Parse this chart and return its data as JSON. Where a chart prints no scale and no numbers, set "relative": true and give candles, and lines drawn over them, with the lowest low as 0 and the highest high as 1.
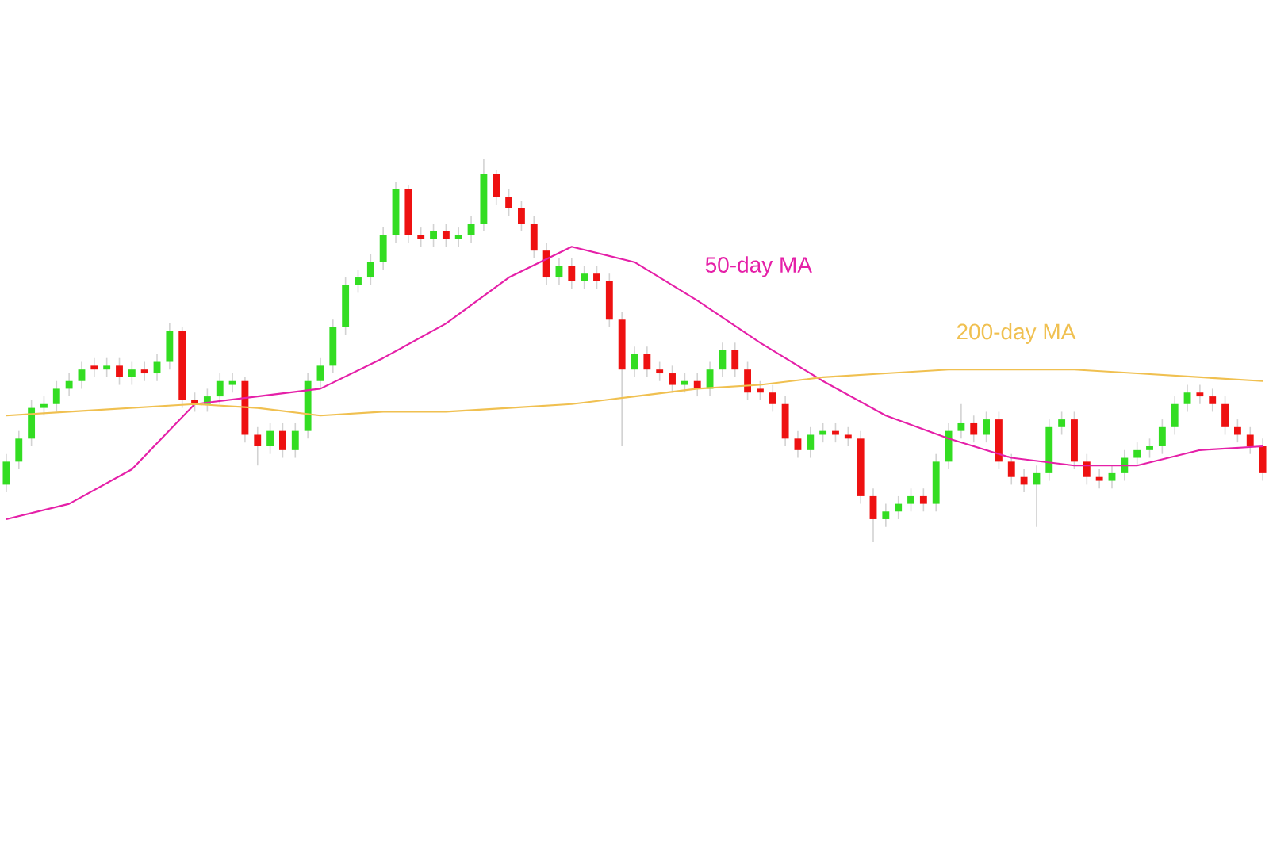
{
  "chart_data": {
    "type": "candlestick",
    "relative": true,
    "categories": [
      null,
      null,
      null,
      null,
      null,
      null,
      null,
      null,
      null,
      null,
      null,
      null,
      null,
      null,
      null,
      null,
      null,
      null,
      null,
      null,
      null,
      null,
      null,
      null,
      null,
      null,
      null,
      null,
      null,
      null,
      null,
      null,
      null,
      null,
      null,
      null,
      null,
      null,
      null,
      null,
      null,
      null,
      null,
      null,
      null,
      null,
      null,
      null,
      null,
      null,
      null,
      null,
      null,
      null,
      null,
      null,
      null,
      null,
      null,
      null,
      null,
      null,
      null,
      null,
      null,
      null,
      null,
      null,
      null,
      null,
      null,
      null,
      null,
      null,
      null,
      null,
      null,
      null,
      null,
      null,
      null,
      null,
      null,
      null,
      null,
      null,
      null,
      null,
      null,
      null,
      null,
      null,
      null,
      null,
      null,
      null,
      null,
      null,
      null,
      null,
      null
    ],
    "ohlc": [
      [
        0.15,
        0.23,
        0.13,
        0.21
      ],
      [
        0.21,
        0.29,
        0.19,
        0.27
      ],
      [
        0.27,
        0.37,
        0.25,
        0.35
      ],
      [
        0.35,
        0.38,
        0.33,
        0.36
      ],
      [
        0.36,
        0.42,
        0.34,
        0.4
      ],
      [
        0.4,
        0.44,
        0.38,
        0.42
      ],
      [
        0.42,
        0.47,
        0.4,
        0.45
      ],
      [
        0.46,
        0.48,
        0.43,
        0.45
      ],
      [
        0.45,
        0.48,
        0.43,
        0.46
      ],
      [
        0.46,
        0.48,
        0.41,
        0.43
      ],
      [
        0.43,
        0.47,
        0.41,
        0.45
      ],
      [
        0.45,
        0.47,
        0.42,
        0.44
      ],
      [
        0.44,
        0.49,
        0.42,
        0.47
      ],
      [
        0.47,
        0.57,
        0.45,
        0.55
      ],
      [
        0.55,
        0.56,
        0.35,
        0.37
      ],
      [
        0.37,
        0.39,
        0.34,
        0.36
      ],
      [
        0.36,
        0.4,
        0.34,
        0.38
      ],
      [
        0.38,
        0.44,
        0.36,
        0.42
      ],
      [
        0.41,
        0.44,
        0.39,
        0.42
      ],
      [
        0.42,
        0.43,
        0.26,
        0.28
      ],
      [
        0.28,
        0.3,
        0.2,
        0.25
      ],
      [
        0.25,
        0.31,
        0.23,
        0.29
      ],
      [
        0.29,
        0.31,
        0.22,
        0.24
      ],
      [
        0.24,
        0.31,
        0.22,
        0.29
      ],
      [
        0.29,
        0.44,
        0.27,
        0.42
      ],
      [
        0.42,
        0.48,
        0.4,
        0.46
      ],
      [
        0.46,
        0.58,
        0.44,
        0.56
      ],
      [
        0.56,
        0.69,
        0.54,
        0.67
      ],
      [
        0.67,
        0.71,
        0.65,
        0.69
      ],
      [
        0.69,
        0.75,
        0.67,
        0.73
      ],
      [
        0.73,
        0.82,
        0.71,
        0.8
      ],
      [
        0.8,
        0.94,
        0.78,
        0.92
      ],
      [
        0.92,
        0.93,
        0.78,
        0.8
      ],
      [
        0.8,
        0.82,
        0.77,
        0.79
      ],
      [
        0.79,
        0.83,
        0.77,
        0.81
      ],
      [
        0.81,
        0.83,
        0.77,
        0.79
      ],
      [
        0.79,
        0.82,
        0.77,
        0.8
      ],
      [
        0.8,
        0.85,
        0.78,
        0.83
      ],
      [
        0.83,
        1.0,
        0.81,
        0.96
      ],
      [
        0.96,
        0.97,
        0.88,
        0.9
      ],
      [
        0.9,
        0.92,
        0.85,
        0.87
      ],
      [
        0.87,
        0.89,
        0.81,
        0.83
      ],
      [
        0.83,
        0.85,
        0.74,
        0.76
      ],
      [
        0.76,
        0.78,
        0.67,
        0.69
      ],
      [
        0.69,
        0.74,
        0.67,
        0.72
      ],
      [
        0.72,
        0.74,
        0.66,
        0.68
      ],
      [
        0.68,
        0.72,
        0.66,
        0.7
      ],
      [
        0.7,
        0.72,
        0.66,
        0.68
      ],
      [
        0.68,
        0.7,
        0.56,
        0.58
      ],
      [
        0.58,
        0.6,
        0.25,
        0.45
      ],
      [
        0.45,
        0.51,
        0.43,
        0.49
      ],
      [
        0.49,
        0.51,
        0.43,
        0.45
      ],
      [
        0.45,
        0.47,
        0.42,
        0.44
      ],
      [
        0.44,
        0.46,
        0.39,
        0.41
      ],
      [
        0.41,
        0.44,
        0.39,
        0.42
      ],
      [
        0.42,
        0.44,
        0.38,
        0.4
      ],
      [
        0.4,
        0.47,
        0.38,
        0.45
      ],
      [
        0.45,
        0.52,
        0.43,
        0.5
      ],
      [
        0.5,
        0.52,
        0.43,
        0.45
      ],
      [
        0.45,
        0.47,
        0.37,
        0.39
      ],
      [
        0.4,
        0.42,
        0.37,
        0.39
      ],
      [
        0.39,
        0.41,
        0.34,
        0.36
      ],
      [
        0.36,
        0.38,
        0.25,
        0.27
      ],
      [
        0.27,
        0.29,
        0.22,
        0.24
      ],
      [
        0.24,
        0.3,
        0.22,
        0.28
      ],
      [
        0.28,
        0.31,
        0.26,
        0.29
      ],
      [
        0.29,
        0.31,
        0.26,
        0.28
      ],
      [
        0.28,
        0.3,
        0.25,
        0.27
      ],
      [
        0.27,
        0.29,
        0.1,
        0.12
      ],
      [
        0.12,
        0.14,
        0.0,
        0.06
      ],
      [
        0.06,
        0.1,
        0.04,
        0.08
      ],
      [
        0.08,
        0.12,
        0.06,
        0.1
      ],
      [
        0.1,
        0.14,
        0.08,
        0.12
      ],
      [
        0.12,
        0.14,
        0.08,
        0.1
      ],
      [
        0.1,
        0.23,
        0.08,
        0.21
      ],
      [
        0.21,
        0.31,
        0.19,
        0.29
      ],
      [
        0.29,
        0.36,
        0.27,
        0.31
      ],
      [
        0.31,
        0.33,
        0.26,
        0.28
      ],
      [
        0.28,
        0.34,
        0.26,
        0.32
      ],
      [
        0.32,
        0.34,
        0.19,
        0.21
      ],
      [
        0.21,
        0.23,
        0.15,
        0.17
      ],
      [
        0.17,
        0.19,
        0.13,
        0.15
      ],
      [
        0.15,
        0.2,
        0.04,
        0.18
      ],
      [
        0.18,
        0.32,
        0.16,
        0.3
      ],
      [
        0.3,
        0.34,
        0.28,
        0.32
      ],
      [
        0.32,
        0.34,
        0.19,
        0.21
      ],
      [
        0.21,
        0.23,
        0.15,
        0.17
      ],
      [
        0.17,
        0.19,
        0.14,
        0.16
      ],
      [
        0.16,
        0.2,
        0.14,
        0.18
      ],
      [
        0.18,
        0.24,
        0.16,
        0.22
      ],
      [
        0.22,
        0.26,
        0.2,
        0.24
      ],
      [
        0.24,
        0.27,
        0.22,
        0.25
      ],
      [
        0.25,
        0.32,
        0.23,
        0.3
      ],
      [
        0.3,
        0.38,
        0.28,
        0.36
      ],
      [
        0.36,
        0.41,
        0.34,
        0.39
      ],
      [
        0.39,
        0.41,
        0.36,
        0.38
      ],
      [
        0.38,
        0.4,
        0.34,
        0.36
      ],
      [
        0.36,
        0.38,
        0.28,
        0.3
      ],
      [
        0.3,
        0.32,
        0.26,
        0.28
      ],
      [
        0.28,
        0.3,
        0.23,
        0.25
      ],
      [
        0.25,
        0.27,
        0.16,
        0.18
      ]
    ],
    "series": [
      {
        "name": "50-day MA",
        "type": "line",
        "color": "#e520a8",
        "values": [
          0.06,
          null,
          null,
          null,
          null,
          0.1,
          null,
          null,
          null,
          null,
          0.19,
          null,
          null,
          null,
          null,
          0.36,
          null,
          null,
          null,
          null,
          0.38,
          null,
          null,
          null,
          null,
          0.4,
          null,
          null,
          null,
          null,
          0.48,
          null,
          null,
          null,
          null,
          0.57,
          null,
          null,
          null,
          null,
          0.69,
          null,
          null,
          null,
          null,
          0.77,
          null,
          null,
          null,
          null,
          0.73,
          null,
          null,
          null,
          null,
          0.63,
          null,
          null,
          null,
          null,
          0.52,
          null,
          null,
          null,
          null,
          0.42,
          null,
          null,
          null,
          null,
          0.33,
          null,
          null,
          null,
          null,
          0.27,
          null,
          null,
          null,
          null,
          0.22,
          null,
          null,
          null,
          null,
          0.2,
          null,
          null,
          null,
          null,
          0.2,
          null,
          null,
          null,
          null,
          0.24,
          null,
          null,
          null,
          null,
          0.25
        ]
      },
      {
        "name": "200-day MA",
        "type": "line",
        "color": "#f0c050",
        "values": [
          0.33,
          null,
          null,
          null,
          null,
          0.34,
          null,
          null,
          null,
          null,
          0.35,
          null,
          null,
          null,
          null,
          0.36,
          null,
          null,
          null,
          null,
          0.35,
          null,
          null,
          null,
          null,
          0.33,
          null,
          null,
          null,
          null,
          0.34,
          null,
          null,
          null,
          null,
          0.34,
          null,
          null,
          null,
          null,
          0.35,
          null,
          null,
          null,
          null,
          0.36,
          null,
          null,
          null,
          null,
          0.38,
          null,
          null,
          null,
          null,
          0.4,
          null,
          null,
          null,
          null,
          0.41,
          null,
          null,
          null,
          null,
          0.43,
          null,
          null,
          null,
          null,
          0.44,
          null,
          null,
          null,
          null,
          0.45,
          null,
          null,
          null,
          null,
          0.45,
          null,
          null,
          null,
          null,
          0.45,
          null,
          null,
          null,
          null,
          0.44,
          null,
          null,
          null,
          null,
          0.43,
          null,
          null,
          null,
          null,
          0.42
        ]
      }
    ]
  }
}
